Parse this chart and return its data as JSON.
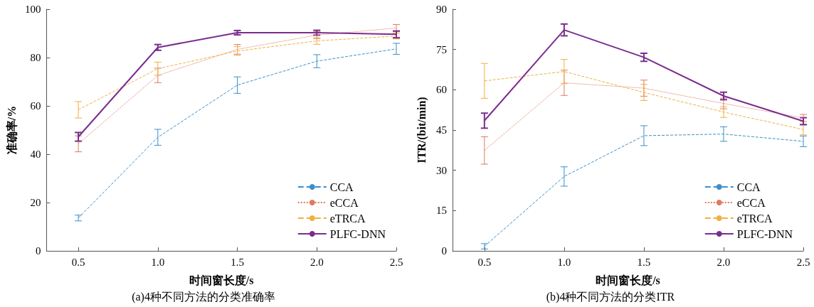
{
  "chart_data": [
    {
      "type": "line",
      "title": "(a)4种不同方法的分类准确率",
      "xlabel": "时间窗长度/s",
      "ylabel": "准确率/%",
      "x": [
        0.5,
        1.0,
        1.5,
        2.0,
        2.5
      ],
      "xlim": [
        0.3,
        2.5
      ],
      "xticks": [
        {
          "value": 0.5,
          "label": "0.5"
        },
        {
          "value": 1,
          "label": "1.0"
        },
        {
          "value": 1.5,
          "label": "1.5"
        },
        {
          "value": 2,
          "label": "2.0"
        },
        {
          "value": 2.5,
          "label": "2.5"
        }
      ],
      "ylim": [
        0,
        100
      ],
      "yticks": [
        0,
        20,
        40,
        60,
        80,
        100
      ],
      "grid": false,
      "legend": "bottom right",
      "marker": "none",
      "series": [
        {
          "name": "CCA",
          "color": "#3b8fcc",
          "line_style": "dashed",
          "values": [
            13.6,
            47,
            68.6,
            78.5,
            83.6
          ],
          "errors": [
            1.2,
            3.3,
            3.4,
            2.7,
            2.3
          ]
        },
        {
          "name": "eCCA",
          "color": "#e07a5f",
          "line_style": "dotted",
          "values": [
            44.3,
            72.6,
            83.4,
            89.3,
            92.2
          ],
          "errors": [
            3.3,
            3,
            2,
            1.5,
            1.5
          ]
        },
        {
          "name": "eTRCA",
          "color": "#f0b040",
          "line_style": "dashed",
          "values": [
            58.4,
            75.4,
            82.7,
            86.9,
            88.9
          ],
          "errors": [
            3.4,
            2.7,
            1.8,
            1.4,
            1.2
          ]
        },
        {
          "name": "PLFC-DNN",
          "color": "#7b2d8e",
          "line_style": "solid",
          "values": [
            47.2,
            84.2,
            90.3,
            90.3,
            89.6
          ],
          "errors": [
            1.8,
            1.2,
            0.9,
            1,
            1.4
          ]
        }
      ]
    },
    {
      "type": "line",
      "title": "(b)4种不同方法的分类ITR",
      "xlabel": "时间窗长度/s",
      "ylabel": "ITR/(bit/min)",
      "x": [
        0.5,
        1.0,
        1.5,
        2.0,
        2.5
      ],
      "xlim": [
        0.3,
        2.5
      ],
      "xticks": [
        {
          "value": 0.5,
          "label": "0.5"
        },
        {
          "value": 1,
          "label": "1.0"
        },
        {
          "value": 1.5,
          "label": "1.5"
        },
        {
          "value": 2,
          "label": "2.0"
        },
        {
          "value": 2.5,
          "label": "2.5"
        }
      ],
      "ylim": [
        0,
        90
      ],
      "yticks": [
        0,
        15,
        30,
        45,
        60,
        75,
        90
      ],
      "grid": false,
      "legend": "bottom right",
      "marker": "none",
      "series": [
        {
          "name": "CCA",
          "color": "#3b8fcc",
          "line_style": "dashed",
          "values": [
            1.7,
            27.7,
            42.9,
            43.5,
            40.8
          ],
          "errors": [
            1,
            3.6,
            3.7,
            2.7,
            2
          ]
        },
        {
          "name": "eCCA",
          "color": "#e07a5f",
          "line_style": "dotted",
          "values": [
            37.4,
            62.6,
            60.6,
            54.9,
            49.5
          ],
          "errors": [
            5.1,
            4.7,
            3,
            2,
            1.3
          ]
        },
        {
          "name": "eTRCA",
          "color": "#f0b040",
          "line_style": "dashed",
          "values": [
            63.3,
            66.8,
            59,
            51.7,
            45.2
          ],
          "errors": [
            6.5,
            4.5,
            3,
            2,
            2
          ]
        },
        {
          "name": "PLFC-DNN",
          "color": "#7b2d8e",
          "line_style": "solid",
          "values": [
            48.5,
            82.3,
            72.1,
            57.7,
            48.3
          ],
          "errors": [
            2.8,
            2.2,
            1.5,
            1.4,
            1.3
          ]
        }
      ]
    }
  ]
}
